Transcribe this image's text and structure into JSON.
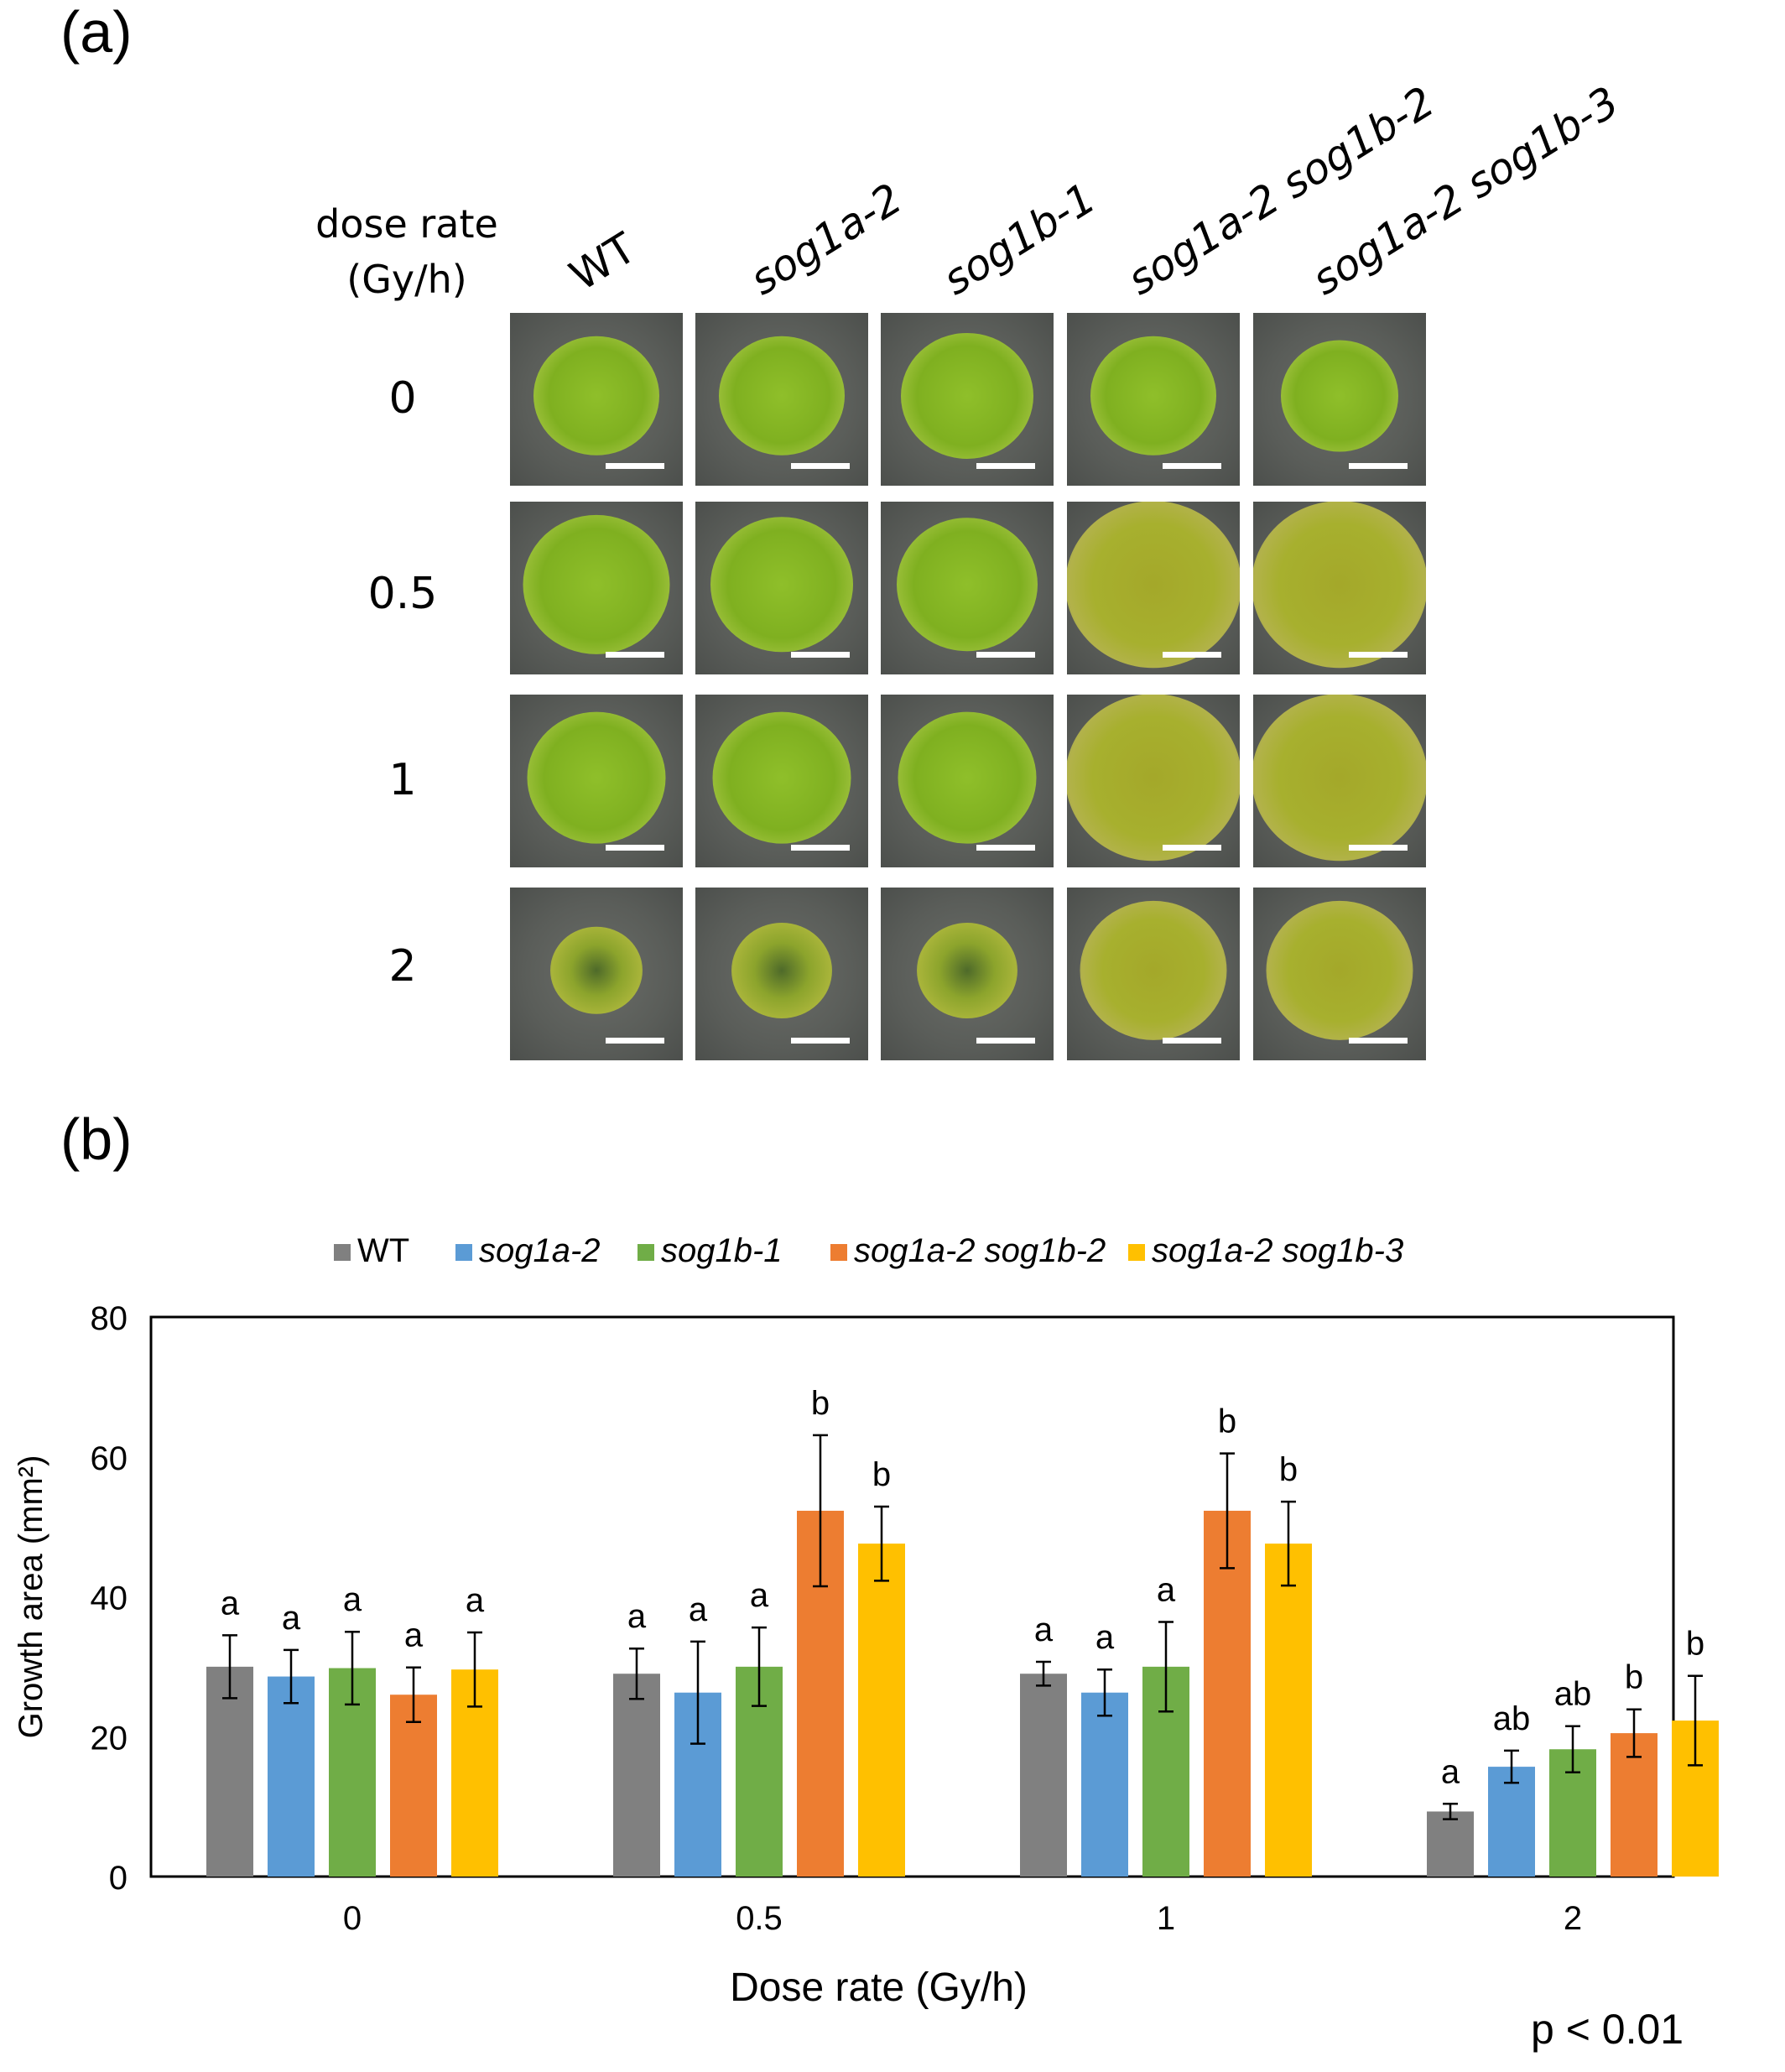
{
  "panel_a": {
    "label": "(a)",
    "row_header": [
      "dose rate",
      "(Gy/h)"
    ],
    "columns": [
      "WT",
      "sog1a-2",
      "sog1b-1",
      "sog1a-2 sog1b-2",
      "sog1a-2 sog1b-3"
    ],
    "rows": [
      "0",
      "0.5",
      "1",
      "2"
    ]
  },
  "panel_b": {
    "label": "(b)",
    "p_value": "p < 0.01"
  },
  "chart_data": {
    "type": "bar",
    "title": "",
    "xlabel": "Dose rate (Gy/h)",
    "ylabel": "Growth area (mm²)",
    "ylim": [
      0,
      80
    ],
    "yticks": [
      0,
      20,
      40,
      60,
      80
    ],
    "categories": [
      "0",
      "0.5",
      "1",
      "2"
    ],
    "legend_position": "top",
    "series": [
      {
        "name": "WT",
        "color": "#808080",
        "values": [
          30.0,
          29.0,
          29.0,
          9.3
        ],
        "errors": [
          4.5,
          3.6,
          1.7,
          1.1
        ],
        "letters": [
          "a",
          "a",
          "a",
          "a"
        ]
      },
      {
        "name": "sog1a-2",
        "color": "#5b9bd5",
        "values": [
          28.6,
          26.3,
          26.3,
          15.7
        ],
        "errors": [
          3.8,
          7.3,
          3.3,
          2.3
        ],
        "letters": [
          "a",
          "a",
          "a",
          "ab"
        ]
      },
      {
        "name": "sog1b-1",
        "color": "#70ad47",
        "values": [
          29.8,
          30.0,
          30.0,
          18.2
        ],
        "errors": [
          5.2,
          5.6,
          6.4,
          3.3
        ],
        "letters": [
          "a",
          "a",
          "a",
          "ab"
        ]
      },
      {
        "name": "sog1a-2 sog1b-2",
        "color": "#ed7d31",
        "values": [
          26.0,
          52.3,
          52.3,
          20.5
        ],
        "errors": [
          3.9,
          10.8,
          8.2,
          3.4
        ],
        "letters": [
          "a",
          "b",
          "b",
          "b"
        ]
      },
      {
        "name": "sog1a-2 sog1b-3",
        "color": "#ffc000",
        "values": [
          29.6,
          47.6,
          47.6,
          22.3
        ],
        "errors": [
          5.3,
          5.3,
          6.0,
          6.4
        ],
        "letters": [
          "a",
          "b",
          "b",
          "b"
        ]
      }
    ]
  }
}
